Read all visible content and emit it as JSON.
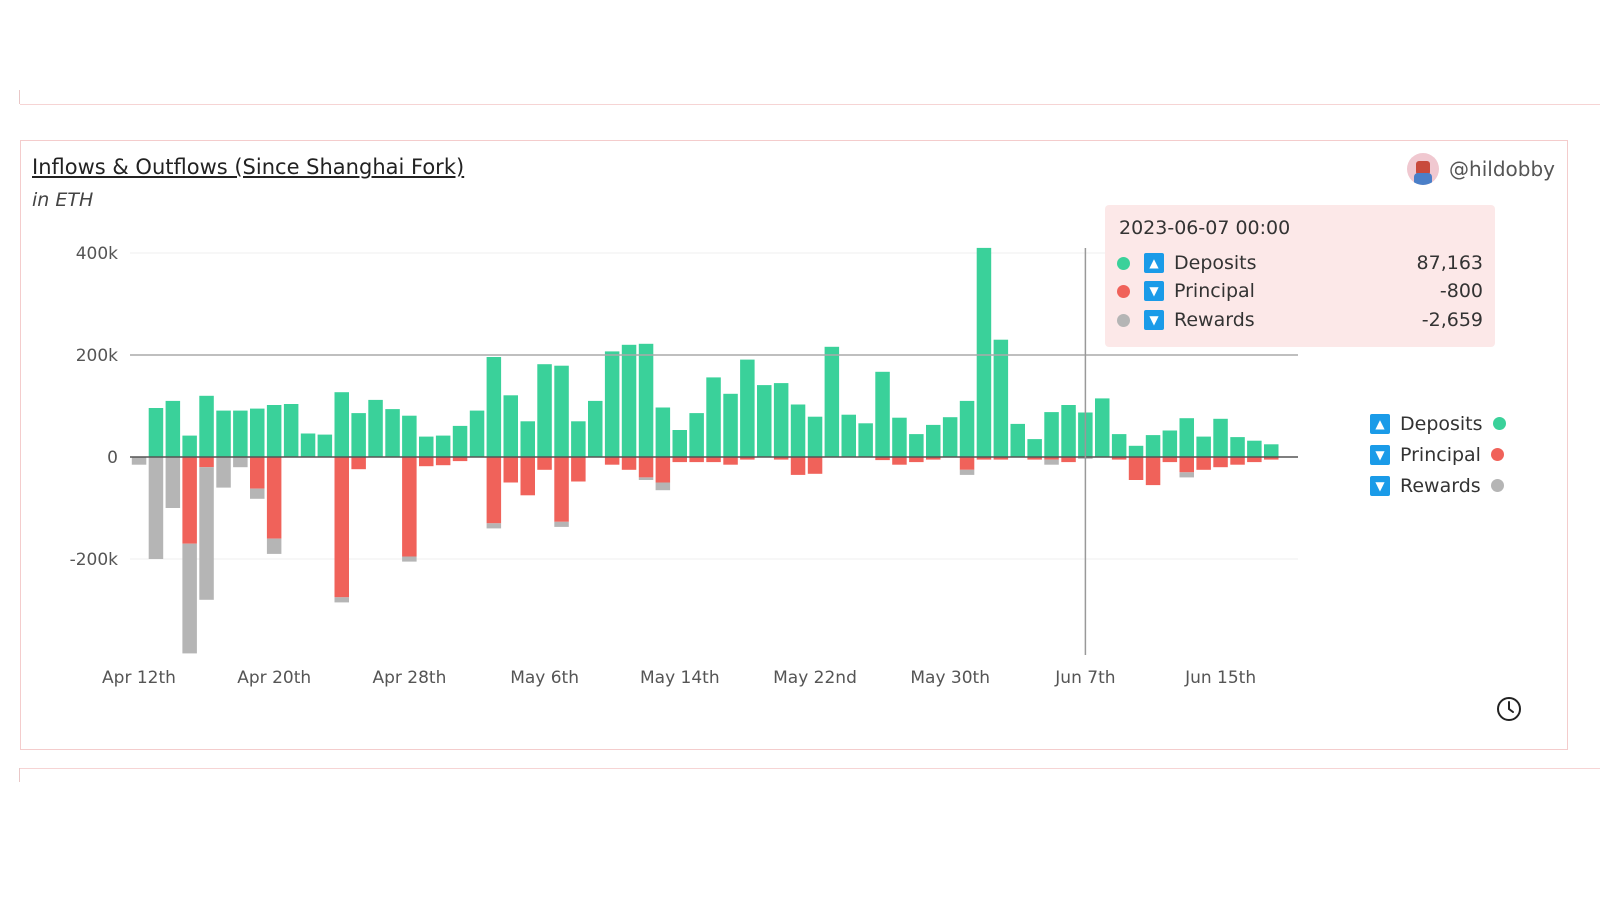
{
  "title": "Inflows & Outflows (Since Shanghai Fork)",
  "subtitle": "in ETH",
  "author": "@hildobby",
  "tooltip": {
    "date": "2023-06-07 00:00",
    "rows": [
      {
        "label": "Deposits",
        "value": "87,163",
        "color": "#3ad19a",
        "direction": "up"
      },
      {
        "label": "Principal",
        "value": "-800",
        "color": "#f0625a",
        "direction": "down"
      },
      {
        "label": "Rewards",
        "value": "-2,659",
        "color": "#b5b5b5",
        "direction": "down"
      }
    ]
  },
  "legend": [
    {
      "label": "Deposits",
      "color": "#3ad19a",
      "direction": "up"
    },
    {
      "label": "Principal",
      "color": "#f0625a",
      "direction": "down"
    },
    {
      "label": "Rewards",
      "color": "#b5b5b5",
      "direction": "down"
    }
  ],
  "chart_data": {
    "type": "bar",
    "stacked": true,
    "title": "Inflows & Outflows (Since Shanghai Fork)",
    "ylabel": "in ETH",
    "ylim": [
      -400000,
      400000
    ],
    "y_ticks": [
      400000,
      200000,
      0,
      -200000
    ],
    "y_tick_labels": [
      "400k",
      "200k",
      "0",
      "-200k"
    ],
    "x_tick_labels": [
      "Apr 12th",
      "Apr 20th",
      "Apr 28th",
      "May 6th",
      "May 14th",
      "May 22nd",
      "May 30th",
      "Jun 7th",
      "Jun 15th"
    ],
    "x_tick_index": [
      0,
      8,
      16,
      24,
      32,
      40,
      48,
      56,
      64
    ],
    "start_date": "2023-04-12",
    "reference_line": 200000,
    "highlight_index": 56,
    "series": [
      {
        "name": "Deposits",
        "color": "#3ad19a",
        "values": [
          0,
          96000,
          110000,
          42000,
          120000,
          91000,
          91000,
          95000,
          102000,
          104000,
          46000,
          44000,
          127000,
          86000,
          112000,
          94000,
          81000,
          40000,
          42000,
          61000,
          91000,
          196000,
          121000,
          70000,
          182000,
          179000,
          70000,
          110000,
          207000,
          220000,
          222000,
          97000,
          53000,
          86000,
          156000,
          124000,
          191000,
          141000,
          145000,
          103000,
          79000,
          216000,
          83000,
          66000,
          167000,
          77000,
          45000,
          63000,
          78000,
          110000,
          410000,
          230000,
          65000,
          35000,
          88000,
          102000,
          87163,
          115000,
          45000,
          22000,
          43000,
          52000,
          76000,
          40000,
          75000,
          39000,
          32000,
          25000
        ]
      },
      {
        "name": "Principal",
        "color": "#f0625a",
        "values": [
          0,
          0,
          0,
          -170000,
          -20000,
          0,
          0,
          -62000,
          -160000,
          0,
          0,
          0,
          -275000,
          -24000,
          0,
          0,
          -195000,
          -18000,
          -16000,
          -8000,
          0,
          -130000,
          -50000,
          -75000,
          -25000,
          -127000,
          -48000,
          0,
          -15000,
          -25000,
          -40000,
          -50000,
          -10000,
          -10000,
          -10000,
          -15000,
          -5000,
          0,
          -5000,
          -35000,
          -33000,
          0,
          0,
          0,
          -6000,
          -15000,
          -10000,
          -5000,
          0,
          -25000,
          -5000,
          -5000,
          0,
          -5000,
          -5000,
          -10000,
          -800,
          0,
          -5000,
          -45000,
          -55000,
          -10000,
          -30000,
          -25000,
          -20000,
          -15000,
          -10000,
          -5000
        ]
      },
      {
        "name": "Rewards",
        "color": "#b5b5b5",
        "values": [
          -15000,
          -200000,
          -100000,
          -215000,
          -260000,
          -60000,
          -20000,
          -20000,
          -30000,
          0,
          0,
          0,
          -10000,
          0,
          0,
          0,
          -10000,
          0,
          0,
          0,
          0,
          -10000,
          0,
          0,
          0,
          -10000,
          0,
          0,
          0,
          0,
          -5000,
          -15000,
          0,
          0,
          0,
          0,
          0,
          0,
          0,
          0,
          0,
          0,
          0,
          0,
          0,
          0,
          0,
          0,
          0,
          -10000,
          0,
          0,
          0,
          0,
          -10000,
          0,
          -2659,
          0,
          0,
          0,
          0,
          0,
          -10000,
          0,
          0,
          0,
          0,
          0
        ]
      }
    ]
  }
}
